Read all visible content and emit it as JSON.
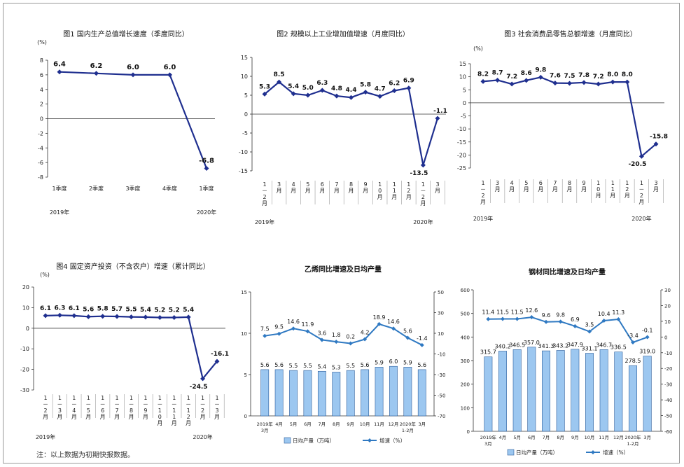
{
  "note": "注：以上数据为初期快报数据。",
  "colors": {
    "line": "#1f2f8f",
    "bar_fill": "#9cc7f0",
    "bar_stroke": "#2c5d9b",
    "line2": "#2f79c2",
    "axis": "#333333"
  },
  "chart_data": [
    {
      "type": "line",
      "title": "图1  国内生产总值增长速度（季度同比）",
      "unit": "(%)",
      "x": [
        "1季度",
        "2季度",
        "3季度",
        "4季度",
        "1季度"
      ],
      "year_labels": [
        {
          "text": "2019年",
          "at": 0
        },
        {
          "text": "2020年",
          "at": 4
        }
      ],
      "values": [
        6.4,
        6.2,
        6.0,
        6.0,
        -6.8
      ],
      "data_labels": [
        "6.4",
        "6.2",
        "6.0",
        "6.0",
        "-6.8"
      ],
      "ylim": [
        -8,
        8
      ],
      "yticks": [
        8,
        6,
        4,
        2,
        0,
        -2,
        -4,
        -6,
        -8
      ]
    },
    {
      "type": "line",
      "title": "图2  规模以上工业增加值增速（月度同比）",
      "x": [
        "1－2月",
        "3月",
        "4月",
        "5月",
        "6月",
        "7月",
        "8月",
        "9月",
        "10月",
        "11月",
        "12月",
        "1－2月",
        "3月"
      ],
      "year_labels": [
        {
          "text": "2019年",
          "at": 0
        },
        {
          "text": "2020年",
          "at": 11
        }
      ],
      "values": [
        5.3,
        8.5,
        5.4,
        5.0,
        6.3,
        4.8,
        4.4,
        5.8,
        4.7,
        6.2,
        6.9,
        -13.5,
        -1.1
      ],
      "data_labels": [
        "5.3",
        "8.5",
        "5.4",
        "5.0",
        "6.3",
        "4.8",
        "4.4",
        "5.8",
        "4.7",
        "6.2",
        "6.9",
        "-13.5",
        "-1.1"
      ],
      "ylim": [
        -15,
        15
      ],
      "yticks": [
        15,
        10,
        5,
        0,
        -5,
        -10,
        -15
      ]
    },
    {
      "type": "line",
      "title": "图3  社会消费品零售总额增速（月度同比）",
      "unit": "(%)",
      "x": [
        "1－2月",
        "3月",
        "4月",
        "5月",
        "6月",
        "7月",
        "8月",
        "9月",
        "10月",
        "11月",
        "12月",
        "1－2月",
        "3月"
      ],
      "year_labels": [
        {
          "text": "2019年",
          "at": 0
        },
        {
          "text": "2020年",
          "at": 11
        }
      ],
      "values": [
        8.2,
        8.7,
        7.2,
        8.6,
        9.8,
        7.6,
        7.5,
        7.8,
        7.2,
        8.0,
        8.0,
        -20.5,
        -15.8
      ],
      "data_labels": [
        "8.2",
        "8.7",
        "7.2",
        "8.6",
        "9.8",
        "7.6",
        "7.5",
        "7.8",
        "7.2",
        "8.0",
        "8.0",
        "-20.5",
        "-15.8"
      ],
      "ylim": [
        -25,
        15
      ],
      "yticks": [
        15,
        10,
        5,
        0,
        -5,
        -10,
        -15,
        -20,
        -25
      ]
    },
    {
      "type": "line",
      "title": "图4  固定资产投资（不含农户）增速（累计同比）",
      "unit": "(%)",
      "x": [
        "1－2月",
        "1－3月",
        "1－4月",
        "1－5月",
        "1－6月",
        "1－7月",
        "1－8月",
        "1－9月",
        "1－10月",
        "1－11月",
        "1－12月",
        "1－2月",
        "1－3月"
      ],
      "year_labels": [
        {
          "text": "2019年",
          "at": 0
        },
        {
          "text": "2020年",
          "at": 11
        }
      ],
      "values": [
        6.1,
        6.3,
        6.1,
        5.6,
        5.8,
        5.7,
        5.5,
        5.4,
        5.2,
        5.2,
        5.4,
        -24.5,
        -16.1
      ],
      "data_labels": [
        "6.1",
        "6.3",
        "6.1",
        "5.6",
        "5.8",
        "5.7",
        "5.5",
        "5.4",
        "5.2",
        "5.2",
        "5.4",
        "-24.5",
        "-16.1"
      ],
      "ylim": [
        -30,
        20
      ],
      "yticks": [
        20,
        10,
        0,
        -10,
        -20,
        -30
      ]
    },
    {
      "type": "bar+line",
      "title": "乙烯同比增速及日均产量",
      "x": [
        [
          "2019年",
          "3月"
        ],
        [
          "4月"
        ],
        [
          "5月"
        ],
        [
          "6月"
        ],
        [
          "7月"
        ],
        [
          "8月"
        ],
        [
          "9月"
        ],
        [
          "10月"
        ],
        [
          "11月"
        ],
        [
          "12月"
        ],
        [
          "2020年",
          "1-2月"
        ],
        [
          "3月"
        ]
      ],
      "bar_name": "日均产量（万吨）",
      "bar_values": [
        5.6,
        5.6,
        5.5,
        5.5,
        5.4,
        5.3,
        5.5,
        5.6,
        5.9,
        6.0,
        5.9,
        5.6
      ],
      "bar_labels": [
        "5.6",
        "5.6",
        "5.5",
        "5.5",
        "5.4",
        "5.3",
        "5.5",
        "5.6",
        "5.9",
        "6.0",
        "5.9",
        "5.6"
      ],
      "line_name": "增速（%）",
      "line_values": [
        7.5,
        9.5,
        14.6,
        11.9,
        3.6,
        1.8,
        0.2,
        4.2,
        18.9,
        14.6,
        5.6,
        -1.4
      ],
      "line_labels": [
        "7.5",
        "9.5",
        "14.6",
        "11.9",
        "3.6",
        "1.8",
        "0.2",
        "4.2",
        "18.9",
        "14.6",
        "5.6",
        "-1.4"
      ],
      "ylim_left": [
        0,
        15
      ],
      "yticks_left": [
        15,
        10,
        5,
        0
      ],
      "ylim_right": [
        -70,
        50
      ],
      "yticks_right": [
        50,
        30,
        10,
        -10,
        -30,
        -50,
        -70
      ]
    },
    {
      "type": "bar+line",
      "title": "钢材同比增速及日均产量",
      "x": [
        [
          "2019年",
          "3月"
        ],
        [
          "4月"
        ],
        [
          "5月"
        ],
        [
          "6月"
        ],
        [
          "7月"
        ],
        [
          "8月"
        ],
        [
          "9月"
        ],
        [
          "10月"
        ],
        [
          "11月"
        ],
        [
          "12月"
        ],
        [
          "2020年",
          "1-2月"
        ],
        [
          "3月"
        ]
      ],
      "bar_name": "日均产量（万吨）",
      "bar_values": [
        315.7,
        340.2,
        346.5,
        357.0,
        341.3,
        343.2,
        347.9,
        331.1,
        346.7,
        336.5,
        278.5,
        319.0
      ],
      "bar_labels": [
        "315.7",
        "340.2",
        "346.5",
        "357.0",
        "341.3",
        "343.2",
        "347.9",
        "331.1",
        "346.7",
        "336.5",
        "278.5",
        "319.0"
      ],
      "line_name": "增速（%）",
      "line_values": [
        11.4,
        11.5,
        11.5,
        12.6,
        9.6,
        9.8,
        6.9,
        3.5,
        10.4,
        11.3,
        -3.4,
        -0.1
      ],
      "line_labels": [
        "11.4",
        "11.5",
        "11.5",
        "12.6",
        "9.6",
        "9.8",
        "6.9",
        "3.5",
        "10.4",
        "11.3",
        "-3.4",
        "-0.1"
      ],
      "ylim_left": [
        0,
        600
      ],
      "yticks_left": [
        600,
        500,
        400,
        300,
        200,
        100,
        0
      ],
      "ylim_right": [
        -60,
        30
      ],
      "yticks_right": [
        30,
        20,
        10,
        0,
        -10,
        -20,
        -30,
        -40,
        -50,
        -60
      ]
    }
  ]
}
